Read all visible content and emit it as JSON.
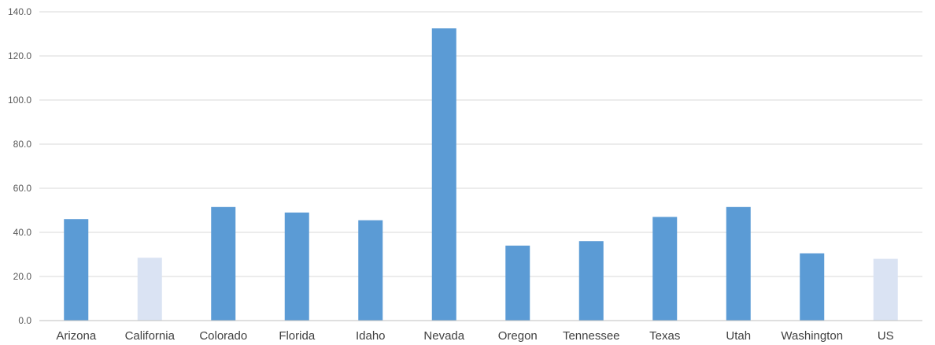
{
  "chart_data": {
    "type": "bar",
    "title": "",
    "xlabel": "",
    "ylabel": "",
    "categories": [
      "Arizona",
      "California",
      "Colorado",
      "Florida",
      "Idaho",
      "Nevada",
      "Oregon",
      "Tennessee",
      "Texas",
      "Utah",
      "Washington",
      "US"
    ],
    "values": [
      46.0,
      28.5,
      51.5,
      49.0,
      45.5,
      132.5,
      34.0,
      36.0,
      47.0,
      51.5,
      30.5,
      28.0
    ],
    "highlighted_categories": [
      "California",
      "US"
    ],
    "ylim": [
      0,
      140
    ],
    "yticks": [
      0,
      20,
      40,
      60,
      80,
      100,
      120,
      140
    ],
    "ytick_labels": [
      "0.0",
      "20.0",
      "40.0",
      "60.0",
      "80.0",
      "100.0",
      "120.0",
      "140.0"
    ],
    "grid": true,
    "legend": "none",
    "colors": {
      "bar": "#5b9bd5",
      "bar_highlight": "#dae3f3",
      "grid": "#d9d9d9",
      "axis": "#bfbfbf"
    }
  }
}
